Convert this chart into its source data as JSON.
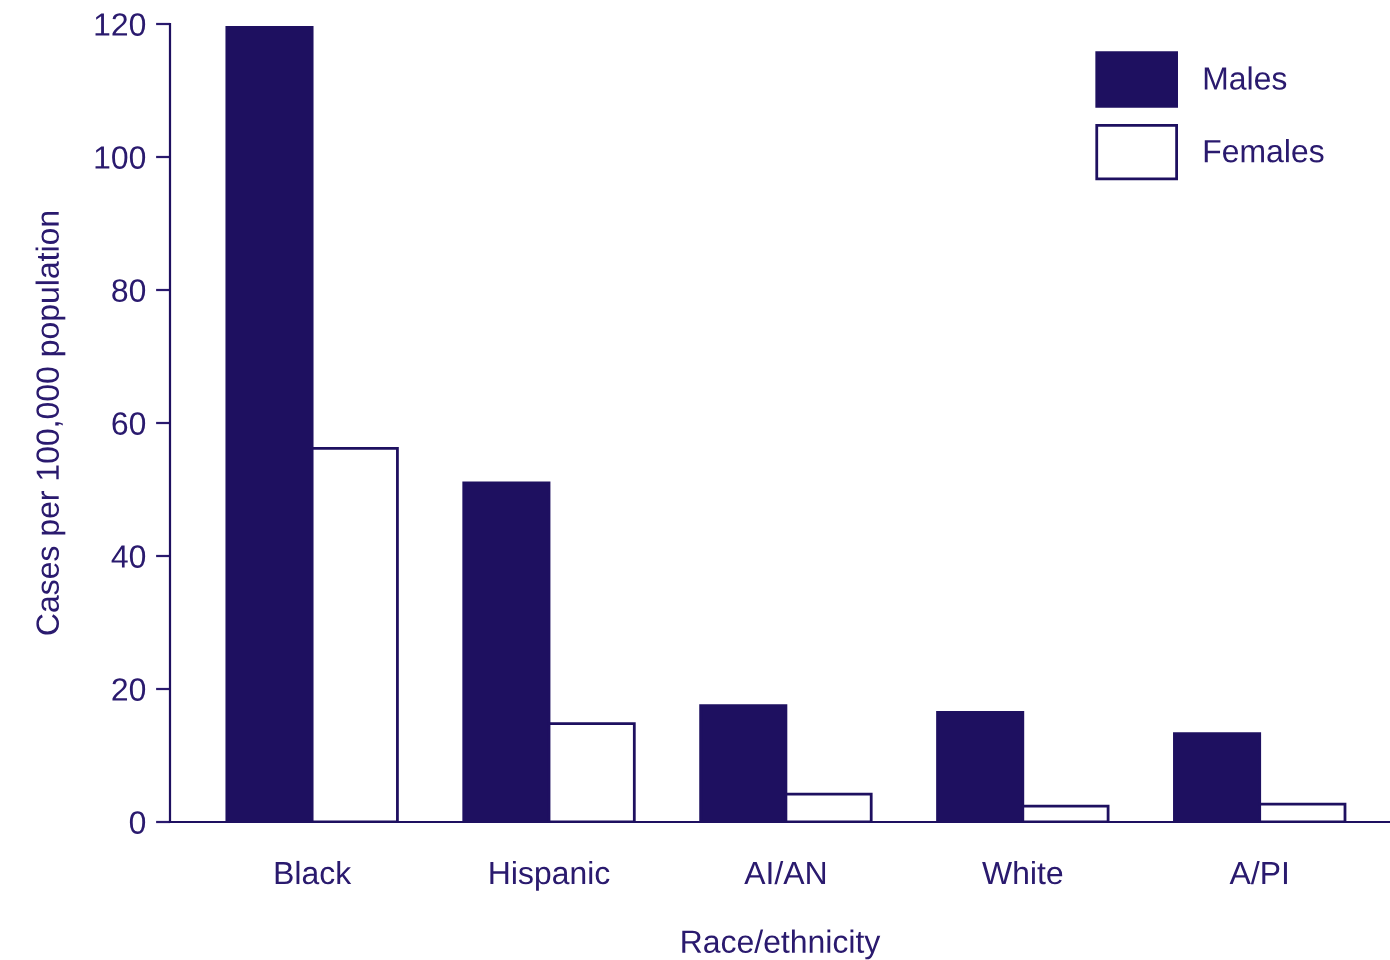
{
  "chart_data": {
    "type": "bar",
    "xlabel": "Race/ethnicity",
    "ylabel": "Cases per 100,000 population",
    "categories": [
      "Black",
      "Hispanic",
      "AI/AN",
      "White",
      "A/PI"
    ],
    "series": [
      {
        "name": "Males",
        "color": "#1e1060",
        "values": [
          119.5,
          51,
          17.5,
          16.5,
          13.3
        ]
      },
      {
        "name": "Females",
        "color": "#ffffff",
        "values": [
          56.2,
          14.8,
          4.2,
          2.4,
          2.7
        ]
      }
    ],
    "ylim": [
      0,
      120
    ],
    "yticks": [
      0,
      20,
      40,
      60,
      80,
      100,
      120
    ],
    "grid": false,
    "legend": "top right"
  }
}
